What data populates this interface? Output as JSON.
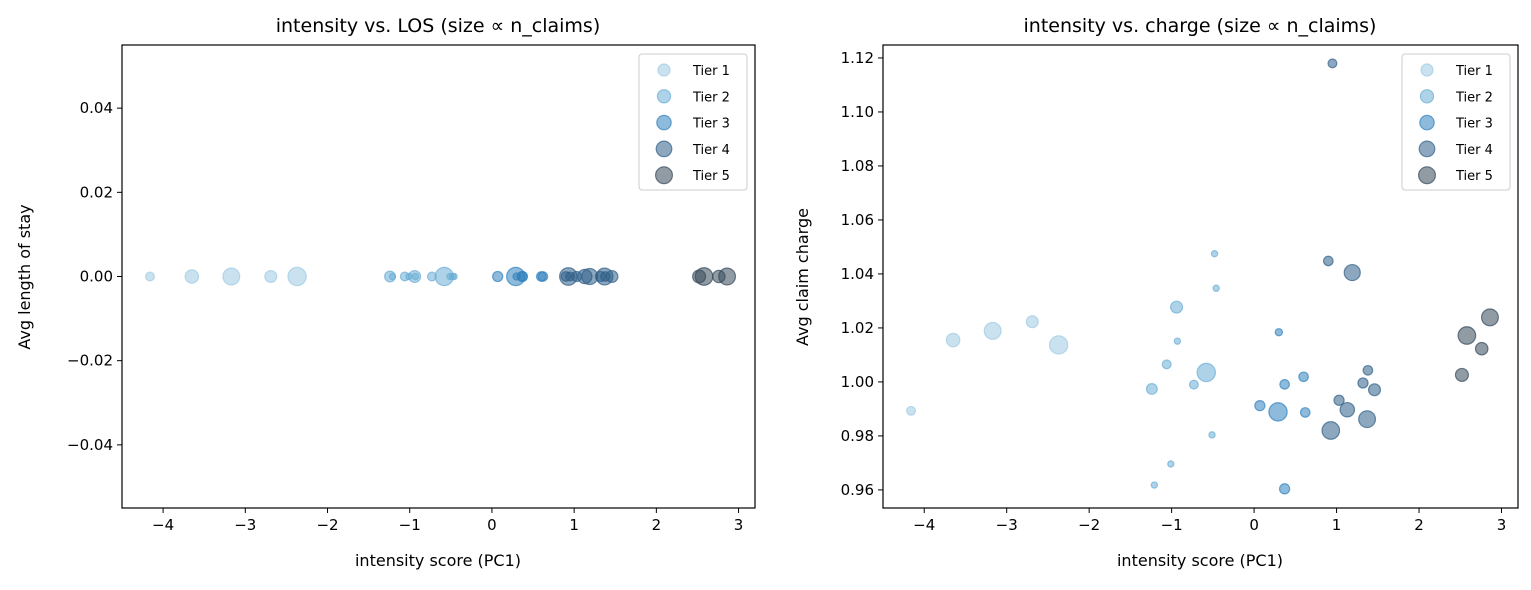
{
  "tier_colors": {
    "Tier 1": "#9ecae1",
    "Tier 2": "#6baed6",
    "Tier 3": "#3182bd",
    "Tier 4": "#2f5f88",
    "Tier 5": "#34495a"
  },
  "chart_data": [
    {
      "type": "scatter",
      "title": "intensity vs. LOS (size ∝ n_claims)",
      "xlabel": "intensity score (PC1)",
      "ylabel": "Avg length of stay",
      "xlim": [
        -4.5,
        3.2
      ],
      "ylim": [
        -0.055,
        0.055
      ],
      "xticks": [
        -4,
        -3,
        -2,
        -1,
        0,
        1,
        2,
        3
      ],
      "xtick_labels": [
        "−4",
        "−3",
        "−2",
        "−1",
        "0",
        "1",
        "2",
        "3"
      ],
      "yticks": [
        0.04,
        0.02,
        0.0,
        -0.02,
        -0.04
      ],
      "ytick_labels": [
        "0.04",
        "0.02",
        "0.00",
        "−0.02",
        "−0.04"
      ],
      "grid": false,
      "legend": {
        "placement": "top-right",
        "entries": [
          "Tier 1",
          "Tier 2",
          "Tier 3",
          "Tier 4",
          "Tier 5"
        ]
      },
      "series": [
        {
          "name": "Tier 1",
          "points": [
            [
              -4.16,
              0,
              30
            ],
            [
              -3.65,
              0,
              70
            ],
            [
              -3.17,
              0,
              110
            ],
            [
              -2.69,
              0,
              55
            ],
            [
              -2.37,
              0,
              130
            ]
          ]
        },
        {
          "name": "Tier 2",
          "points": [
            [
              -0.48,
              0,
              15
            ],
            [
              -0.46,
              0,
              15
            ],
            [
              -0.94,
              0,
              55
            ],
            [
              -0.93,
              0,
              15
            ],
            [
              -1.06,
              0,
              30
            ],
            [
              -0.58,
              0,
              130
            ],
            [
              -1.24,
              0,
              45
            ],
            [
              -0.73,
              0,
              30
            ],
            [
              -0.51,
              0,
              15
            ],
            [
              -1.01,
              0,
              15
            ],
            [
              -1.21,
              0,
              15
            ]
          ]
        },
        {
          "name": "Tier 3",
          "points": [
            [
              0.3,
              0,
              20
            ],
            [
              0.6,
              0,
              35
            ],
            [
              0.37,
              0,
              35
            ],
            [
              0.07,
              0,
              40
            ],
            [
              0.29,
              0,
              130
            ],
            [
              0.62,
              0,
              35
            ],
            [
              0.37,
              0,
              40
            ]
          ]
        },
        {
          "name": "Tier 4",
          "points": [
            [
              0.95,
              0,
              30
            ],
            [
              0.9,
              0,
              35
            ],
            [
              1.19,
              0,
              100
            ],
            [
              1.38,
              0,
              35
            ],
            [
              1.32,
              0,
              40
            ],
            [
              1.46,
              0,
              55
            ],
            [
              1.03,
              0,
              40
            ],
            [
              1.13,
              0,
              80
            ],
            [
              1.37,
              0,
              110
            ],
            [
              0.93,
              0,
              120
            ]
          ]
        },
        {
          "name": "Tier 5",
          "points": [
            [
              2.86,
              0,
              110
            ],
            [
              2.58,
              0,
              120
            ],
            [
              2.76,
              0,
              60
            ],
            [
              2.52,
              0,
              65
            ]
          ]
        }
      ]
    },
    {
      "type": "scatter",
      "title": "intensity vs. charge (size ∝ n_claims)",
      "xlabel": "intensity score (PC1)",
      "ylabel": "Avg claim charge",
      "xlim": [
        -4.5,
        3.2
      ],
      "ylim": [
        0.9533,
        1.1248
      ],
      "xticks": [
        -4,
        -3,
        -2,
        -1,
        0,
        1,
        2,
        3
      ],
      "xtick_labels": [
        "−4",
        "−3",
        "−2",
        "−1",
        "0",
        "1",
        "2",
        "3"
      ],
      "yticks": [
        1.12,
        1.1,
        1.08,
        1.06,
        1.04,
        1.02,
        1.0,
        0.98,
        0.96
      ],
      "ytick_labels": [
        "1.12",
        "1.10",
        "1.08",
        "1.06",
        "1.04",
        "1.02",
        "1.00",
        "0.98",
        "0.96"
      ],
      "grid": false,
      "legend": {
        "placement": "top-right",
        "entries": [
          "Tier 1",
          "Tier 2",
          "Tier 3",
          "Tier 4",
          "Tier 5"
        ]
      },
      "series": [
        {
          "name": "Tier 1",
          "points": [
            [
              -4.16,
              0.9893,
              30
            ],
            [
              -3.65,
              1.0155,
              70
            ],
            [
              -3.17,
              1.0189,
              110
            ],
            [
              -2.69,
              1.0223,
              55
            ],
            [
              -2.37,
              1.0137,
              130
            ]
          ]
        },
        {
          "name": "Tier 2",
          "points": [
            [
              -0.48,
              1.0475,
              15
            ],
            [
              -0.46,
              1.0347,
              15
            ],
            [
              -0.94,
              1.0277,
              55
            ],
            [
              -0.93,
              1.0151,
              15
            ],
            [
              -1.06,
              1.0065,
              30
            ],
            [
              -0.58,
              1.0035,
              130
            ],
            [
              -1.24,
              0.9974,
              45
            ],
            [
              -0.73,
              0.999,
              30
            ],
            [
              -0.51,
              0.9804,
              15
            ],
            [
              -1.01,
              0.9696,
              15
            ],
            [
              -1.21,
              0.9618,
              15
            ]
          ]
        },
        {
          "name": "Tier 3",
          "points": [
            [
              0.3,
              1.0184,
              20
            ],
            [
              0.6,
              1.0019,
              35
            ],
            [
              0.37,
              0.9991,
              35
            ],
            [
              0.07,
              0.9912,
              40
            ],
            [
              0.29,
              0.9889,
              130
            ],
            [
              0.62,
              0.9887,
              35
            ],
            [
              0.37,
              0.9604,
              40
            ]
          ]
        },
        {
          "name": "Tier 4",
          "points": [
            [
              0.95,
              1.118,
              30
            ],
            [
              0.9,
              1.0448,
              35
            ],
            [
              1.19,
              1.0405,
              100
            ],
            [
              1.38,
              1.0043,
              35
            ],
            [
              1.32,
              0.9996,
              40
            ],
            [
              1.46,
              0.9971,
              55
            ],
            [
              1.03,
              0.9932,
              40
            ],
            [
              1.13,
              0.9897,
              80
            ],
            [
              1.37,
              0.9862,
              110
            ],
            [
              0.93,
              0.982,
              120
            ]
          ]
        },
        {
          "name": "Tier 5",
          "points": [
            [
              2.86,
              1.0239,
              110
            ],
            [
              2.58,
              1.0172,
              120
            ],
            [
              2.76,
              1.0123,
              60
            ],
            [
              2.52,
              1.0026,
              65
            ]
          ]
        }
      ]
    }
  ]
}
